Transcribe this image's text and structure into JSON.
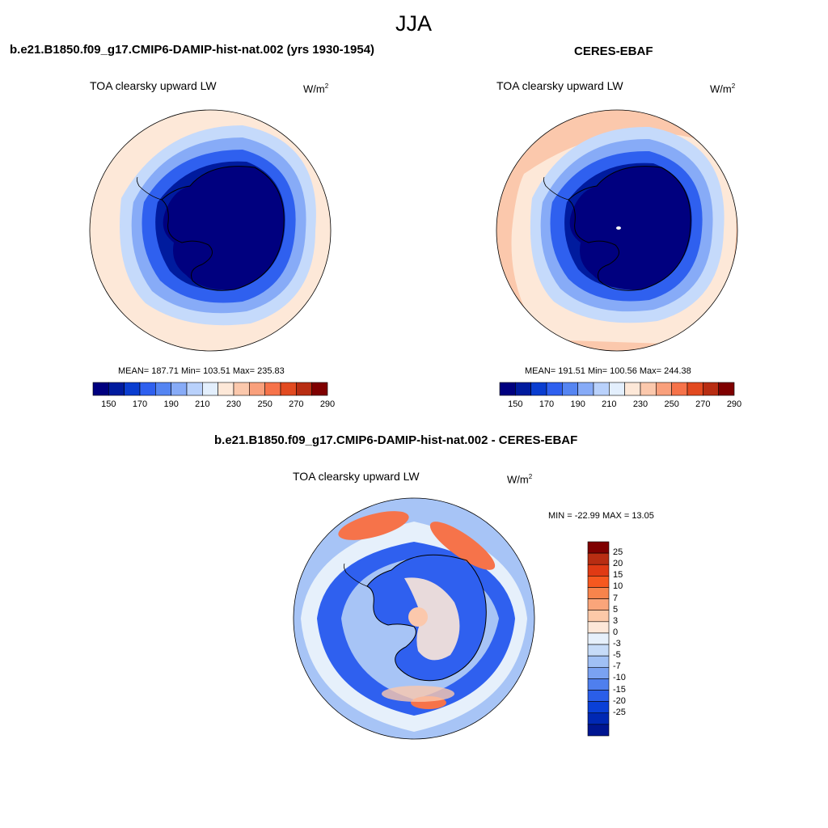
{
  "page": {
    "season": "JJA"
  },
  "panels": [
    {
      "title": "b.e21.B1850.f09_g17.CMIP6-DAMIP-hist-nat.002 (yrs 1930-1954)",
      "variable": "TOA clearsky upward LW",
      "units_base": "W/m",
      "units_exp": "2",
      "stats": "MEAN= 187.71  Min= 103.51  Max= 235.83"
    },
    {
      "title": "CERES-EBAF",
      "variable": "TOA clearsky upward LW",
      "units_base": "W/m",
      "units_exp": "2",
      "stats": "MEAN= 191.51  Min= 100.56  Max= 244.38"
    },
    {
      "title": "b.e21.B1850.f09_g17.CMIP6-DAMIP-hist-nat.002 - CERES-EBAF",
      "variable": "TOA clearsky upward LW",
      "units_base": "W/m",
      "units_exp": "2",
      "stats": "MIN = -22.99 MAX =  13.05"
    }
  ],
  "colorbar_abs": {
    "colors": [
      "#00007f",
      "#001b9e",
      "#0a3dd0",
      "#2f60ef",
      "#5585f2",
      "#87abf7",
      "#b9d1fb",
      "#e3effd",
      "#fde8d8",
      "#fbc8ac",
      "#f9a07c",
      "#f6734a",
      "#e24a20",
      "#b82d12",
      "#7f0000"
    ],
    "tick_labels": [
      "150",
      "170",
      "190",
      "210",
      "230",
      "250",
      "270",
      "290"
    ]
  },
  "colorbar_diff": {
    "colors": [
      "#7f0000",
      "#b82d12",
      "#e03a14",
      "#f6581f",
      "#f8844c",
      "#faa57a",
      "#fcc9a8",
      "#fde7d8",
      "#e6f0fb",
      "#c6dbf8",
      "#a0c0f5",
      "#7aa2f2",
      "#4f7fee",
      "#2a5ee9",
      "#0a40d7",
      "#0028b4",
      "#001691"
    ],
    "tick_labels": [
      "25",
      "20",
      "15",
      "10",
      "7",
      "5",
      "3",
      "0",
      "-3",
      "-5",
      "-7",
      "-10",
      "-15",
      "-20",
      "-25"
    ]
  },
  "map_colors": {
    "ice_core": "#00007f",
    "ring_deep": "#001b9e",
    "ring_mid": "#2f60ef",
    "ring_light": "#87abf7",
    "ring_pale": "#c5dafb",
    "ocean_warm": "#fde8d8",
    "ocean_warmer": "#fbc8ac",
    "diff_blue": "#2f60ef",
    "diff_lightblue": "#a7c4f6",
    "diff_pale": "#e6f0fb",
    "diff_red": "#f6734a",
    "diff_salmon": "#fbc8ac"
  }
}
